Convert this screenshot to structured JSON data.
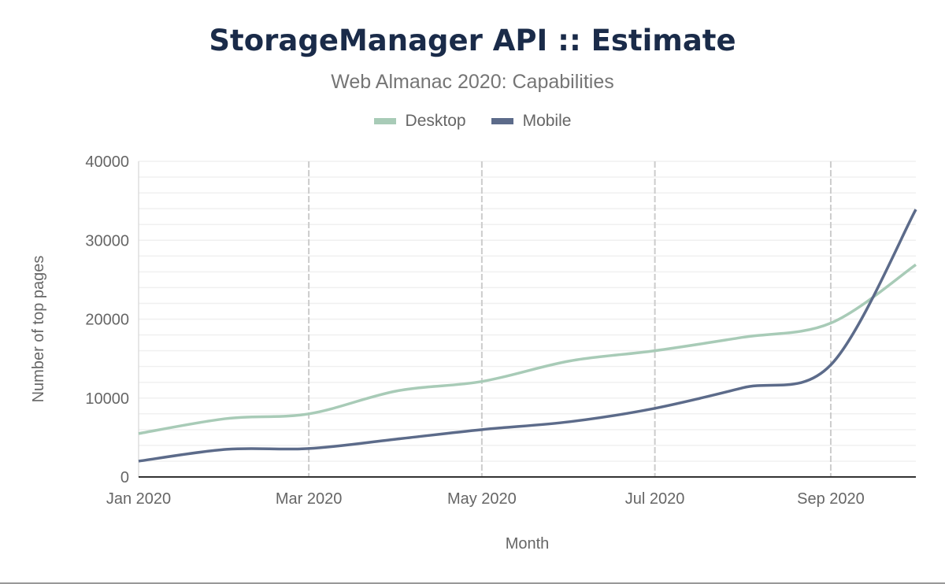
{
  "chart_data": {
    "type": "line",
    "title": "StorageManager API :: Estimate",
    "subtitle": "Web Almanac 2020: Capabilities",
    "xlabel": "Month",
    "ylabel": "Number of top pages",
    "x": [
      "2020-01",
      "2020-02",
      "2020-03",
      "2020-04",
      "2020-05",
      "2020-06",
      "2020-07",
      "2020-08",
      "2020-09",
      "2020-10"
    ],
    "x_tick_labels": [
      "Jan 2020",
      "Mar 2020",
      "May 2020",
      "Jul 2020",
      "Sep 2020"
    ],
    "y_tick_labels": [
      "0",
      "10000",
      "20000",
      "30000",
      "40000"
    ],
    "ylim": [
      0,
      40000
    ],
    "grid": true,
    "legend_position": "top",
    "series": [
      {
        "name": "Desktop",
        "color": "#a8cbb7",
        "values": [
          5500,
          7400,
          8000,
          10900,
          12100,
          14700,
          16000,
          17700,
          19500,
          26900
        ]
      },
      {
        "name": "Mobile",
        "color": "#5c6b8a",
        "values": [
          2000,
          3500,
          3600,
          4800,
          6000,
          7000,
          8700,
          11300,
          14200,
          33900
        ]
      }
    ]
  }
}
